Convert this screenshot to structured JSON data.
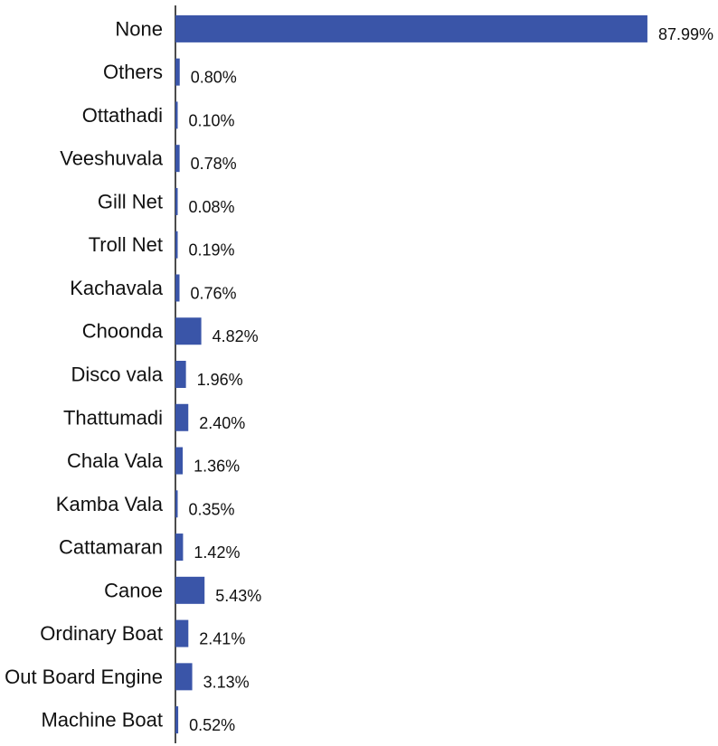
{
  "chart_data": {
    "type": "bar",
    "orientation": "horizontal",
    "categories": [
      "None",
      "Others",
      "Ottathadi",
      "Veeshuvala",
      "Gill Net",
      "Troll Net",
      "Kachavala",
      "Choonda",
      "Disco vala",
      "Thattumadi",
      "Chala Vala",
      "Kamba Vala",
      "Cattamaran",
      "Canoe",
      "Ordinary Boat",
      "Out Board Engine",
      "Machine Boat"
    ],
    "values": [
      87.99,
      0.8,
      0.1,
      0.78,
      0.08,
      0.19,
      0.76,
      4.82,
      1.96,
      2.4,
      1.36,
      0.35,
      1.42,
      5.43,
      2.41,
      3.13,
      0.52
    ],
    "value_labels": [
      "87.99%",
      "0.80%",
      "0.10%",
      "0.78%",
      "0.08%",
      "0.19%",
      "0.76%",
      "4.82%",
      "1.96%",
      "2.40%",
      "1.36%",
      "0.35%",
      "1.42%",
      "5.43%",
      "2.41%",
      "3.13%",
      "0.52%"
    ],
    "bar_color": "#3a55a8",
    "xlim": [
      0,
      88
    ],
    "grid": false,
    "legend": "none"
  }
}
